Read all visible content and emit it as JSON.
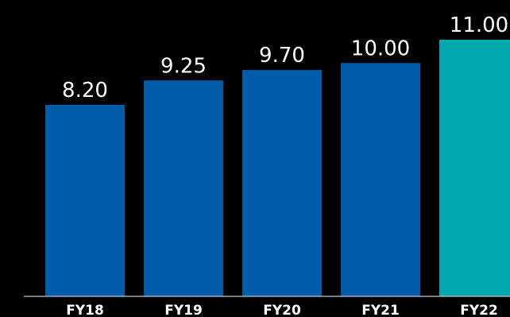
{
  "chart_data": {
    "type": "bar",
    "categories": [
      "FY18",
      "FY19",
      "FY20",
      "FY21",
      "FY22"
    ],
    "values": [
      8.2,
      9.25,
      9.7,
      10.0,
      11.0
    ],
    "value_labels": [
      "8.20",
      "9.25",
      "9.70",
      "10.00",
      "11.00"
    ],
    "title": "",
    "xlabel": "",
    "ylabel": "",
    "grid": false,
    "legend": "none",
    "colors": {
      "default_bar": "#005ba8",
      "highlight_bar": "#00a7ad",
      "baseline": "#bfc7d0",
      "background": "#000000",
      "text": "#ffffff"
    },
    "highlight_category": "FY22"
  }
}
